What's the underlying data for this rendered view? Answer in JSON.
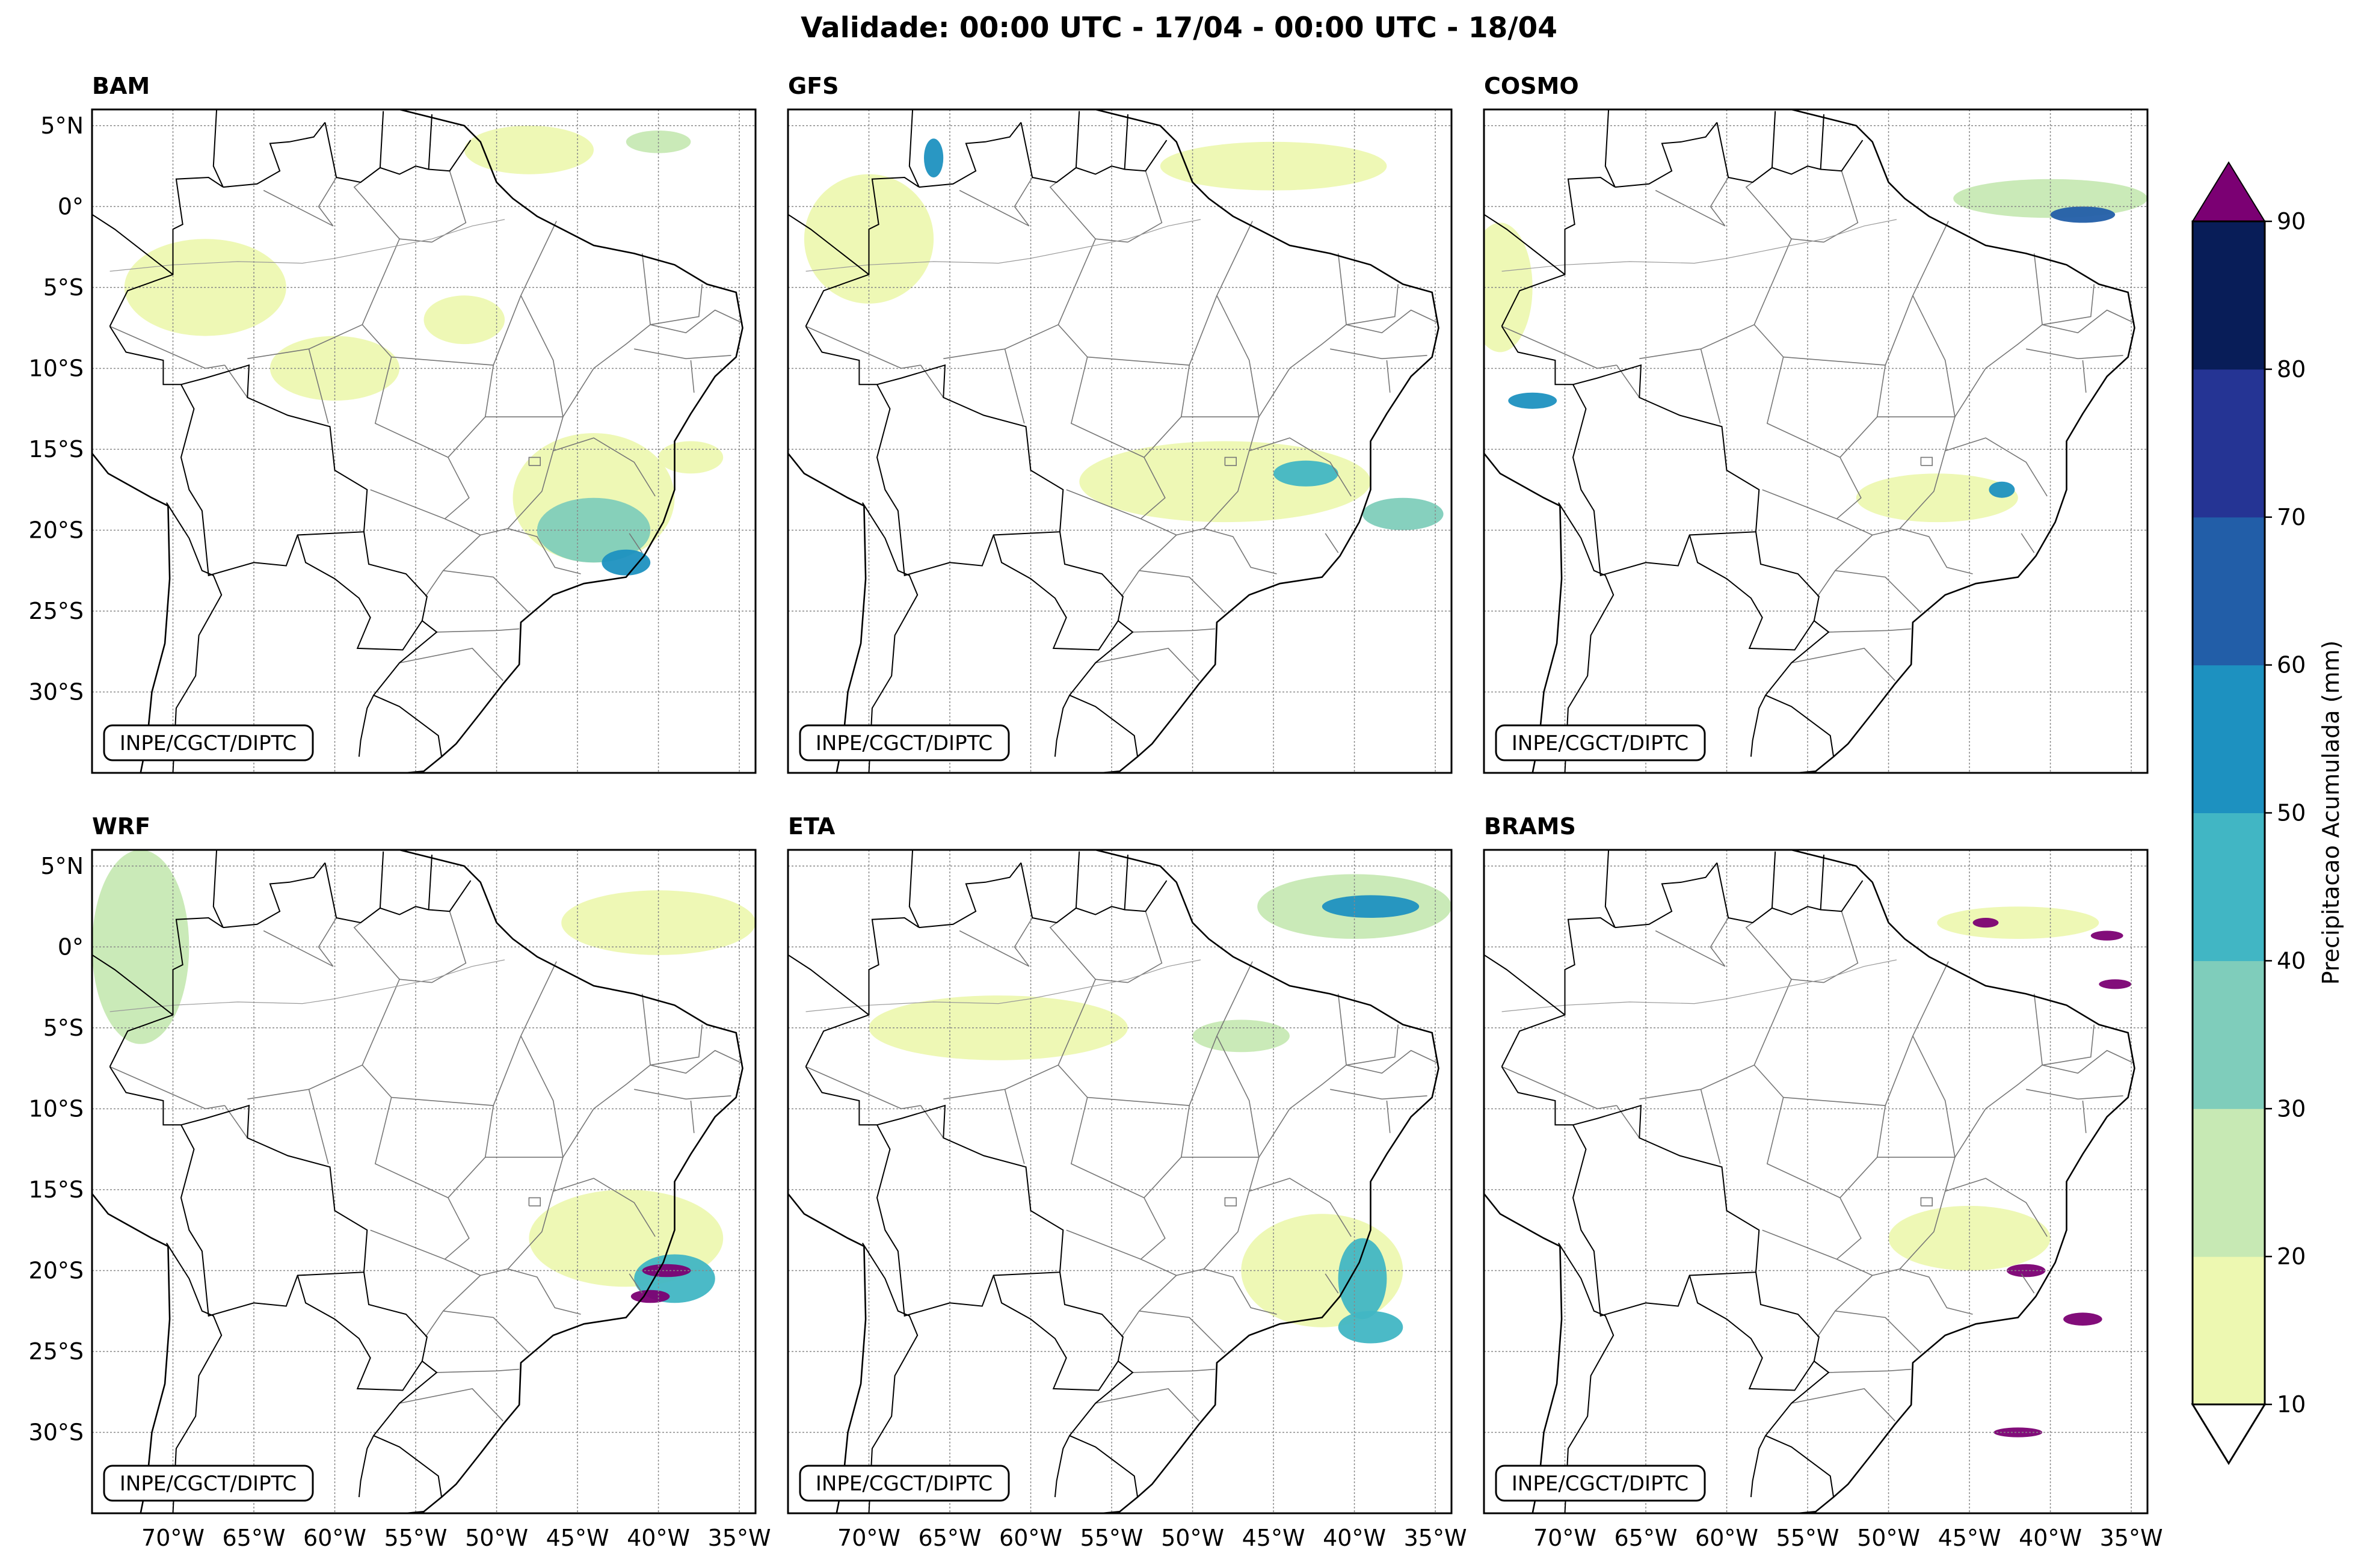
{
  "title": "Validade: 00:00 UTC - 17/04 - 00:00 UTC - 18/04",
  "credit": "INPE/CGCT/DIPTC",
  "panels": [
    {
      "name": "BAM"
    },
    {
      "name": "GFS"
    },
    {
      "name": "COSMO"
    },
    {
      "name": "WRF"
    },
    {
      "name": "ETA"
    },
    {
      "name": "BRAMS"
    }
  ],
  "lat_ticks": [
    {
      "value": 5,
      "label": "5°N"
    },
    {
      "value": 0,
      "label": "0°"
    },
    {
      "value": -5,
      "label": "5°S"
    },
    {
      "value": -10,
      "label": "10°S"
    },
    {
      "value": -15,
      "label": "15°S"
    },
    {
      "value": -20,
      "label": "20°S"
    },
    {
      "value": -25,
      "label": "25°S"
    },
    {
      "value": -30,
      "label": "30°S"
    }
  ],
  "lon_ticks": [
    {
      "value": -70,
      "label": "70°W"
    },
    {
      "value": -65,
      "label": "65°W"
    },
    {
      "value": -60,
      "label": "60°W"
    },
    {
      "value": -55,
      "label": "55°W"
    },
    {
      "value": -50,
      "label": "50°W"
    },
    {
      "value": -45,
      "label": "45°W"
    },
    {
      "value": -40,
      "label": "40°W"
    },
    {
      "value": -35,
      "label": "35°W"
    }
  ],
  "extent": {
    "lon_min": -75,
    "lon_max": -34,
    "lat_min": -35,
    "lat_max": 6
  },
  "colorbar": {
    "label": "Precipitacao Acumulada (mm)",
    "levels": [
      10,
      20,
      30,
      40,
      50,
      60,
      70,
      80,
      90
    ],
    "tick_labels": [
      "10",
      "20",
      "30",
      "40",
      "50",
      "60",
      "70",
      "80",
      "90"
    ],
    "colors": [
      "#edf8b1",
      "#c7e9b4",
      "#7fcdbb",
      "#41b6c4",
      "#1d91c0",
      "#225ea8",
      "#253494",
      "#081d58"
    ],
    "over_color": "#7b0073",
    "under_color": "#ffffff"
  },
  "chart_data": {
    "type": "heatmap",
    "title": "Validade: 00:00 UTC - 17/04 - 00:00 UTC - 18/04",
    "variable": "Precipitacao Acumulada (mm)",
    "panels": [
      "BAM",
      "GFS",
      "COSMO",
      "WRF",
      "ETA",
      "BRAMS"
    ],
    "levels": [
      10,
      20,
      30,
      40,
      50,
      60,
      70,
      80,
      90
    ],
    "x_ticks": [
      -70,
      -65,
      -60,
      -55,
      -50,
      -45,
      -40,
      -35
    ],
    "y_ticks": [
      5,
      0,
      -5,
      -10,
      -15,
      -20,
      -25,
      -30
    ],
    "xlim": [
      -75,
      -34
    ],
    "ylim": [
      -35,
      6
    ],
    "rain_areas": {
      "BAM": [
        {
          "lon": -48,
          "lat": 3.5,
          "rx": 4,
          "ry": 1.5,
          "mm": 12
        },
        {
          "lon": -40,
          "lat": 4,
          "rx": 2,
          "ry": 0.7,
          "mm": 25
        },
        {
          "lon": -68,
          "lat": -5,
          "rx": 5,
          "ry": 3,
          "mm": 12
        },
        {
          "lon": -60,
          "lat": -10,
          "rx": 4,
          "ry": 2,
          "mm": 15
        },
        {
          "lon": -52,
          "lat": -7,
          "rx": 2.5,
          "ry": 1.5,
          "mm": 12
        },
        {
          "lon": -44,
          "lat": -18,
          "rx": 5,
          "ry": 4,
          "mm": 15
        },
        {
          "lon": -44,
          "lat": -20,
          "rx": 3.5,
          "ry": 2,
          "mm": 35
        },
        {
          "lon": -42,
          "lat": -22,
          "rx": 1.5,
          "ry": 0.8,
          "mm": 55
        },
        {
          "lon": -38,
          "lat": -15.5,
          "rx": 2,
          "ry": 1,
          "mm": 12
        }
      ],
      "GFS": [
        {
          "lon": -45,
          "lat": 2.5,
          "rx": 7,
          "ry": 1.5,
          "mm": 12
        },
        {
          "lon": -70,
          "lat": -2,
          "rx": 4,
          "ry": 4,
          "mm": 12
        },
        {
          "lon": -66,
          "lat": 3,
          "rx": 0.6,
          "ry": 1.2,
          "mm": 55
        },
        {
          "lon": -48,
          "lat": -17,
          "rx": 9,
          "ry": 2.5,
          "mm": 12
        },
        {
          "lon": -43,
          "lat": -16.5,
          "rx": 2,
          "ry": 0.8,
          "mm": 40
        },
        {
          "lon": -37,
          "lat": -19,
          "rx": 2.5,
          "ry": 1,
          "mm": 35
        }
      ],
      "COSMO": [
        {
          "lon": -40,
          "lat": 0.5,
          "rx": 6,
          "ry": 1.2,
          "mm": 20
        },
        {
          "lon": -38,
          "lat": -0.5,
          "rx": 2,
          "ry": 0.5,
          "mm": 60
        },
        {
          "lon": -74,
          "lat": -5,
          "rx": 2,
          "ry": 4,
          "mm": 12
        },
        {
          "lon": -72,
          "lat": -12,
          "rx": 1.5,
          "ry": 0.5,
          "mm": 55
        },
        {
          "lon": -47,
          "lat": -18,
          "rx": 5,
          "ry": 1.5,
          "mm": 15
        },
        {
          "lon": -43,
          "lat": -17.5,
          "rx": 0.8,
          "ry": 0.5,
          "mm": 55
        }
      ],
      "WRF": [
        {
          "lon": -72,
          "lat": 0,
          "rx": 3,
          "ry": 6,
          "mm": 20
        },
        {
          "lon": -40,
          "lat": 1.5,
          "rx": 6,
          "ry": 2,
          "mm": 12
        },
        {
          "lon": -42,
          "lat": -18,
          "rx": 6,
          "ry": 3,
          "mm": 15
        },
        {
          "lon": -39,
          "lat": -20.5,
          "rx": 2.5,
          "ry": 1.5,
          "mm": 45
        },
        {
          "lon": -39.5,
          "lat": -20,
          "rx": 1.5,
          "ry": 0.4,
          "mm": 95
        },
        {
          "lon": -40.5,
          "lat": -21.6,
          "rx": 1.2,
          "ry": 0.4,
          "mm": 95
        }
      ],
      "ETA": [
        {
          "lon": -40,
          "lat": 2.5,
          "rx": 6,
          "ry": 2,
          "mm": 25
        },
        {
          "lon": -39,
          "lat": 2.5,
          "rx": 3,
          "ry": 0.7,
          "mm": 50
        },
        {
          "lon": -62,
          "lat": -5,
          "rx": 8,
          "ry": 2,
          "mm": 12
        },
        {
          "lon": -47,
          "lat": -5.5,
          "rx": 3,
          "ry": 1,
          "mm": 25
        },
        {
          "lon": -42,
          "lat": -20,
          "rx": 5,
          "ry": 3.5,
          "mm": 15
        },
        {
          "lon": -39.5,
          "lat": -20.5,
          "rx": 1.5,
          "ry": 2.5,
          "mm": 45
        },
        {
          "lon": -39,
          "lat": -23.5,
          "rx": 2,
          "ry": 1,
          "mm": 45
        }
      ],
      "BRAMS": [
        {
          "lon": -42,
          "lat": 1.5,
          "rx": 5,
          "ry": 1,
          "mm": 15
        },
        {
          "lon": -44,
          "lat": 1.5,
          "rx": 0.8,
          "ry": 0.3,
          "mm": 95
        },
        {
          "lon": -36.5,
          "lat": 0.7,
          "rx": 1,
          "ry": 0.3,
          "mm": 95
        },
        {
          "lon": -36,
          "lat": -2.3,
          "rx": 1,
          "ry": 0.3,
          "mm": 95
        },
        {
          "lon": -41.5,
          "lat": -20,
          "rx": 1.2,
          "ry": 0.4,
          "mm": 95
        },
        {
          "lon": -38,
          "lat": -23,
          "rx": 1.2,
          "ry": 0.4,
          "mm": 95
        },
        {
          "lon": -42,
          "lat": -30,
          "rx": 1.5,
          "ry": 0.3,
          "mm": 95
        },
        {
          "lon": -45,
          "lat": -18,
          "rx": 5,
          "ry": 2,
          "mm": 12
        }
      ]
    }
  }
}
